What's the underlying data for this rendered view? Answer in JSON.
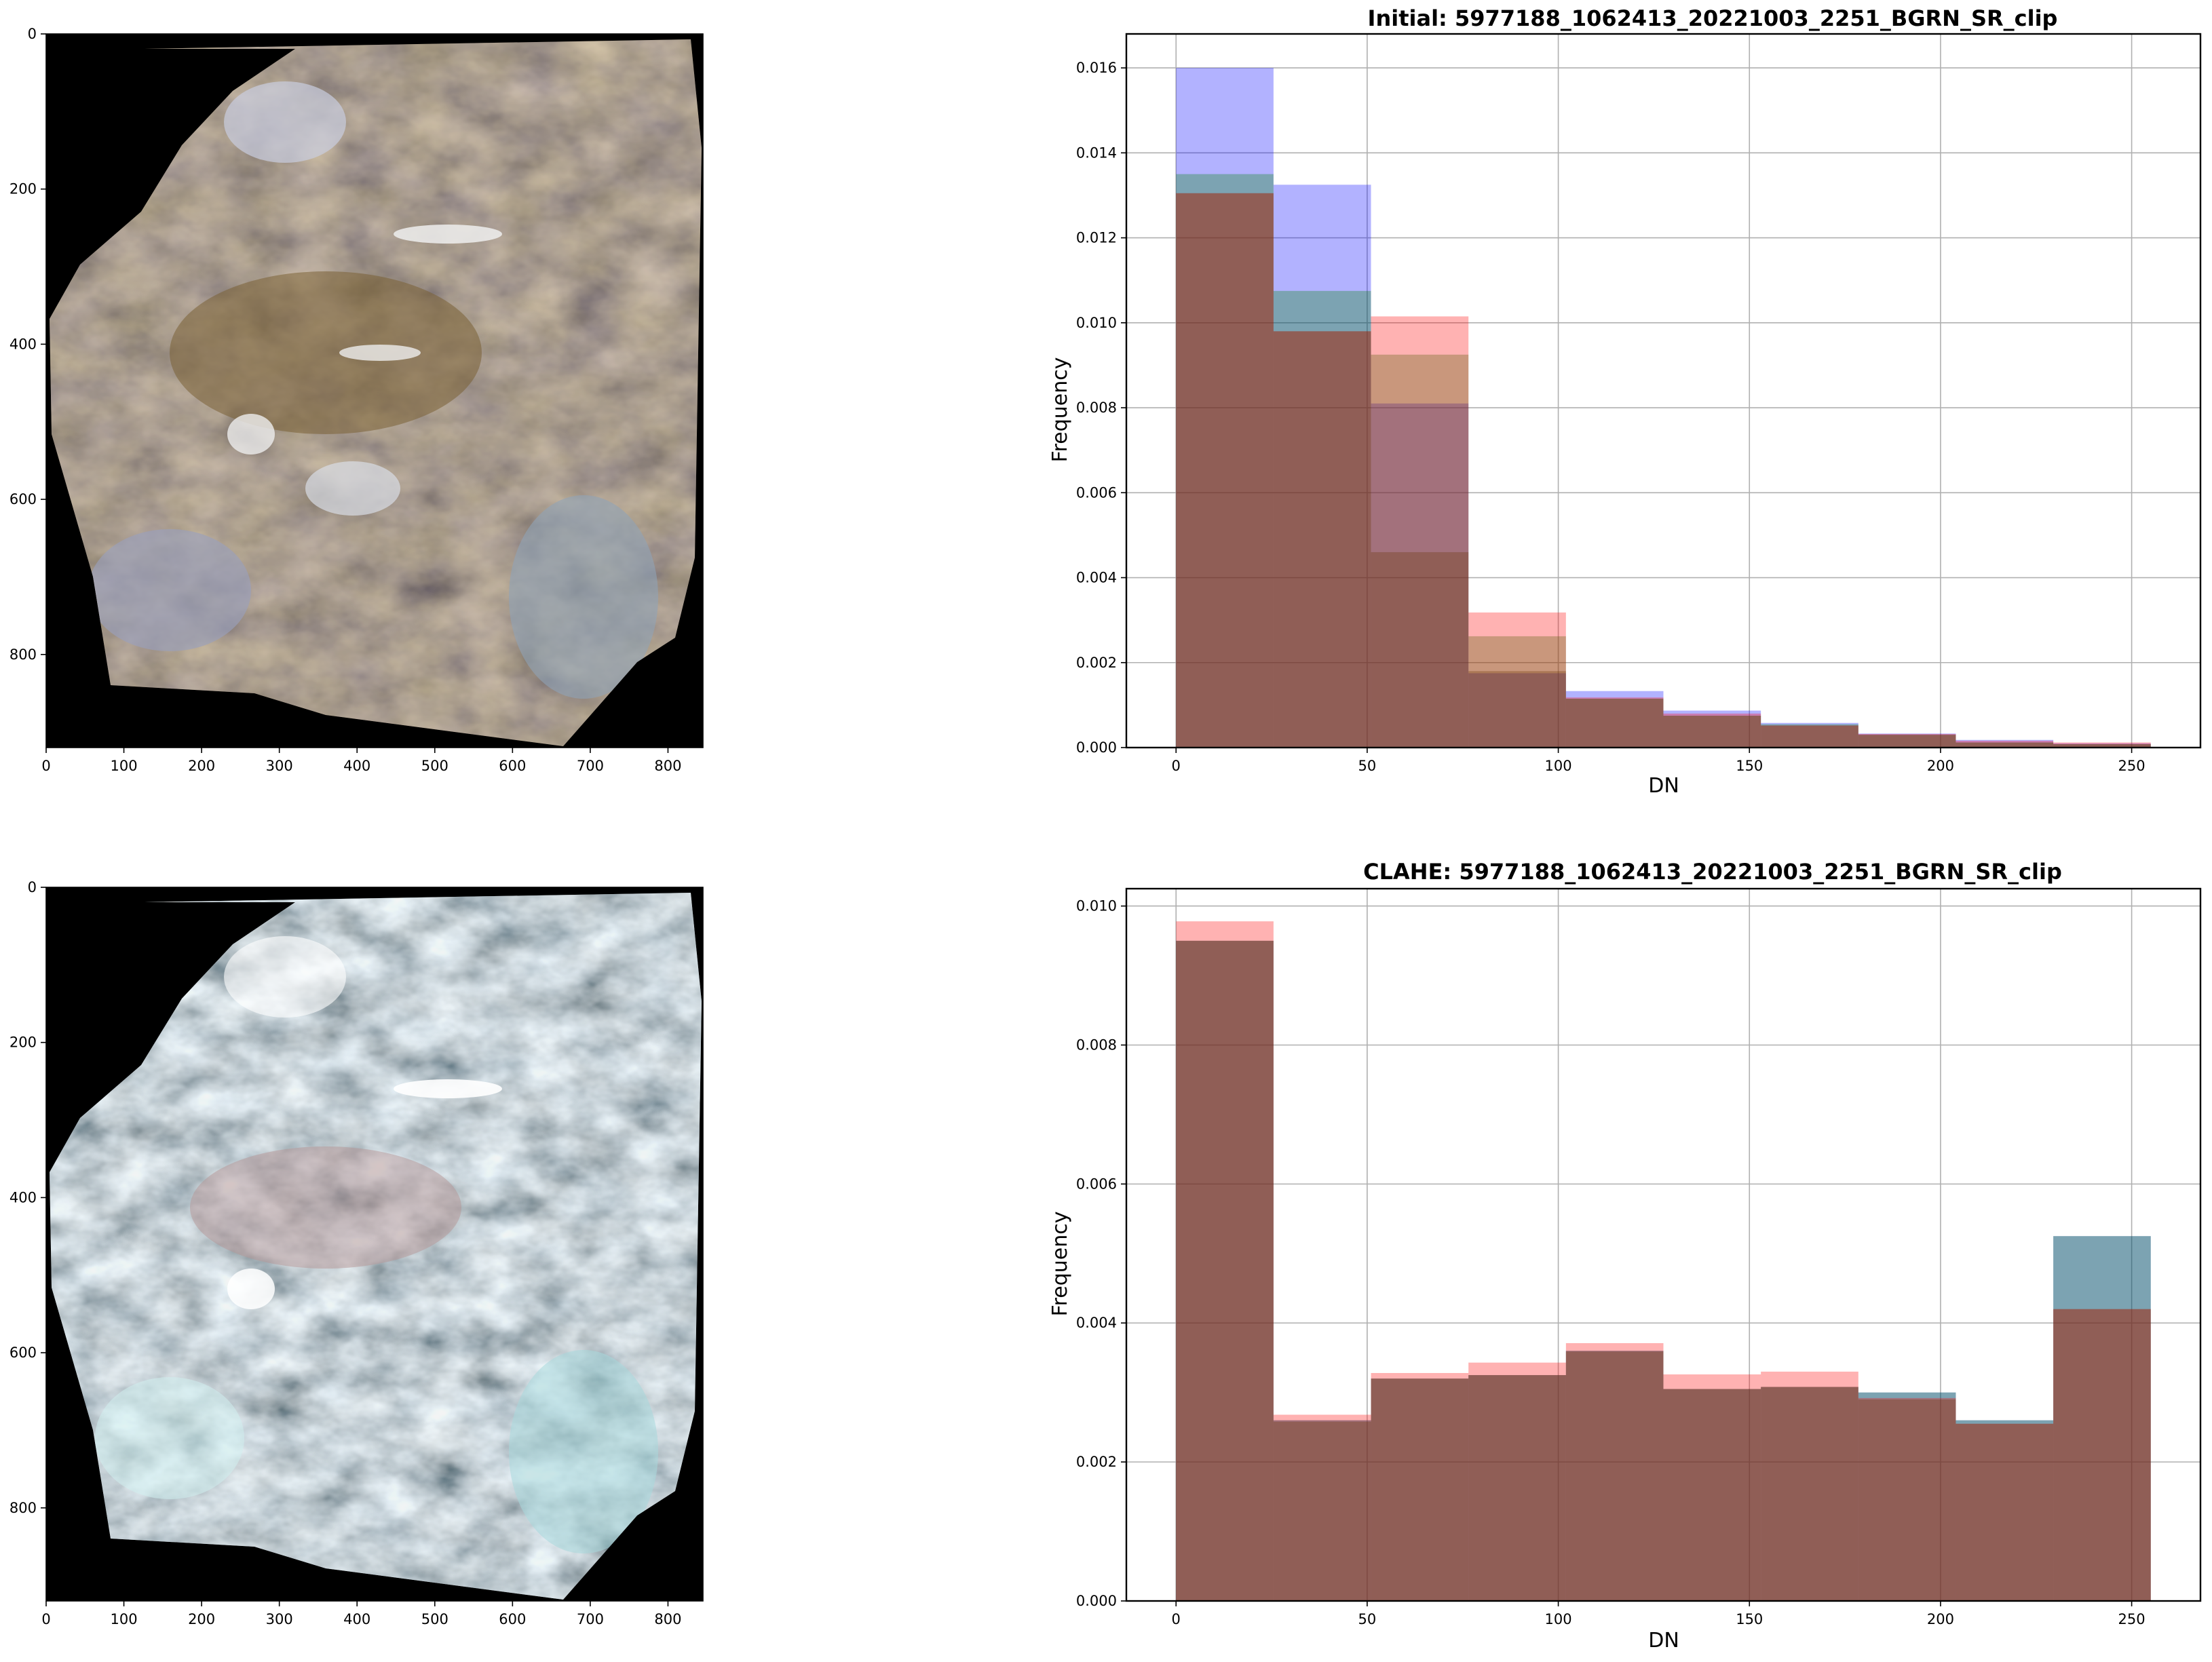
{
  "images": [
    {
      "subject": "satellite scene, true colour",
      "x_ticks": [
        "0",
        "100",
        "200",
        "300",
        "400",
        "500",
        "600",
        "700",
        "800"
      ],
      "y_ticks": [
        "0",
        "200",
        "400",
        "600",
        "800"
      ],
      "x_range": [
        0,
        845
      ],
      "y_range": [
        920,
        0
      ]
    },
    {
      "subject": "satellite scene, CLAHE enhanced",
      "x_ticks": [
        "0",
        "100",
        "200",
        "300",
        "400",
        "500",
        "600",
        "700",
        "800"
      ],
      "y_ticks": [
        "0",
        "200",
        "400",
        "600",
        "800"
      ],
      "x_range": [
        0,
        845
      ],
      "y_range": [
        920,
        0
      ]
    }
  ],
  "chart_data": [
    {
      "type": "bar",
      "title": "Initial: 5977188_1062413_20221003_2251_BGRN_SR_clip",
      "xlabel": "DN",
      "ylabel": "Frequency",
      "xlim": [
        -13,
        268
      ],
      "ylim": [
        0,
        0.0168
      ],
      "grid": true,
      "x_ticks": [
        "0",
        "50",
        "100",
        "150",
        "200",
        "250"
      ],
      "y_ticks": [
        "0.000",
        "0.002",
        "0.004",
        "0.006",
        "0.008",
        "0.010",
        "0.012",
        "0.014",
        "0.016"
      ],
      "bin_edges": [
        0,
        25.5,
        51,
        76.5,
        102,
        127.5,
        153,
        178.5,
        204,
        229.5,
        255
      ],
      "series": [
        {
          "color": "#0000ff",
          "values": [
            0.016,
            0.01325,
            0.0081,
            0.00175,
            0.00133,
            0.00087,
            0.00058,
            0.00033,
            0.00018,
            0.0001
          ]
        },
        {
          "color": "#008000",
          "values": [
            0.0135,
            0.01075,
            0.00925,
            0.00262,
            0.00115,
            0.00075,
            0.00055,
            0.0003,
            0.00012,
            8e-05
          ]
        },
        {
          "color": "#ff0000",
          "values": [
            0.01305,
            0.0098,
            0.01015,
            0.00318,
            0.00118,
            0.0008,
            0.00052,
            0.00032,
            0.00016,
            0.00012
          ]
        },
        {
          "color": "#663300",
          "values": [
            0.01305,
            0.0098,
            0.0046,
            0.0018,
            0.00115,
            0.00075,
            0.00052,
            0.0003,
            0.00012,
            8e-05
          ]
        }
      ]
    },
    {
      "type": "bar",
      "title": "CLAHE: 5977188_1062413_20221003_2251_BGRN_SR_clip",
      "xlabel": "DN",
      "ylabel": "Frequency",
      "xlim": [
        -13,
        268
      ],
      "ylim": [
        0,
        0.01025
      ],
      "grid": true,
      "x_ticks": [
        "0",
        "50",
        "100",
        "150",
        "200",
        "250"
      ],
      "y_ticks": [
        "0.000",
        "0.002",
        "0.004",
        "0.006",
        "0.008",
        "0.010"
      ],
      "bin_edges": [
        0,
        25.5,
        51,
        76.5,
        102,
        127.5,
        153,
        178.5,
        204,
        229.5,
        255
      ],
      "series": [
        {
          "color": "#0000ff",
          "values": [
            0.0095,
            0.0026,
            0.0032,
            0.00325,
            0.0036,
            0.00305,
            0.00308,
            0.003,
            0.0026,
            0.00525
          ]
        },
        {
          "color": "#008000",
          "values": [
            0.0095,
            0.0026,
            0.0032,
            0.00325,
            0.0036,
            0.00305,
            0.00308,
            0.003,
            0.0026,
            0.00525
          ]
        },
        {
          "color": "#ff0000",
          "values": [
            0.00978,
            0.00268,
            0.00328,
            0.00343,
            0.00371,
            0.00326,
            0.0033,
            0.00292,
            0.00255,
            0.0042
          ]
        },
        {
          "color": "#663300",
          "values": [
            0.0095,
            0.00258,
            0.0032,
            0.00325,
            0.00359,
            0.00305,
            0.00308,
            0.0029,
            0.00255,
            0.0042
          ]
        }
      ]
    }
  ]
}
